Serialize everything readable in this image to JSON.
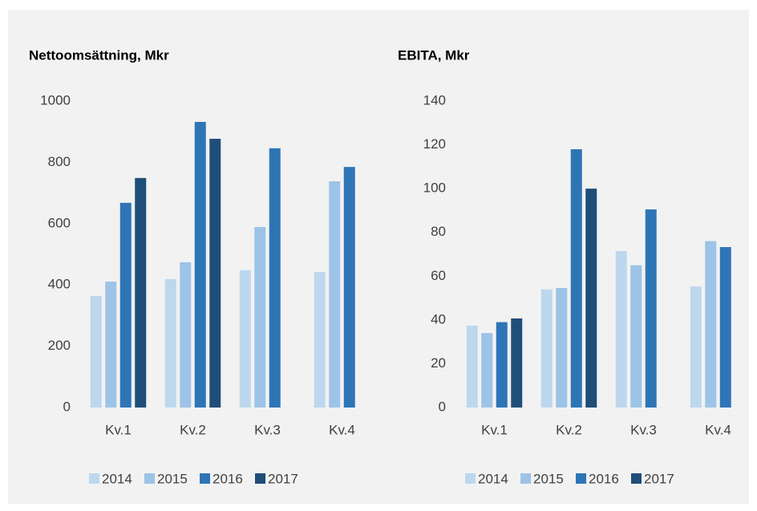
{
  "chart_data": [
    {
      "type": "bar",
      "title": "Nettoomsättning, Mkr",
      "categories": [
        "Kv.1",
        "Kv.2",
        "Kv.3",
        "Kv.4"
      ],
      "series": [
        {
          "name": "2014",
          "color": "#bdd7ee",
          "values": [
            364,
            419,
            448,
            442
          ]
        },
        {
          "name": "2015",
          "color": "#9dc3e6",
          "values": [
            411,
            474,
            589,
            738
          ]
        },
        {
          "name": "2016",
          "color": "#2e75b6",
          "values": [
            668,
            932,
            846,
            785
          ]
        },
        {
          "name": "2017",
          "color": "#1f4e79",
          "values": [
            749,
            877,
            null,
            null
          ]
        }
      ],
      "ylim": [
        0,
        1000
      ],
      "yticks": [
        0,
        200,
        400,
        600,
        800,
        1000
      ],
      "grid": false,
      "legend": "bottom"
    },
    {
      "type": "bar",
      "title": "EBITA, Mkr",
      "categories": [
        "Kv.1",
        "Kv.2",
        "Kv.3",
        "Kv.4"
      ],
      "series": [
        {
          "name": "2014",
          "color": "#bdd7ee",
          "values": [
            37.4,
            54,
            71.5,
            55.3
          ]
        },
        {
          "name": "2015",
          "color": "#9dc3e6",
          "values": [
            34,
            54.6,
            65,
            76
          ]
        },
        {
          "name": "2016",
          "color": "#2e75b6",
          "values": [
            39,
            118,
            90.5,
            73.3
          ]
        },
        {
          "name": "2017",
          "color": "#1f4e79",
          "values": [
            40.7,
            100,
            null,
            null
          ]
        }
      ],
      "ylim": [
        0,
        140
      ],
      "yticks": [
        0,
        20,
        40,
        60,
        80,
        100,
        120,
        140
      ],
      "grid": false,
      "legend": "bottom"
    }
  ]
}
